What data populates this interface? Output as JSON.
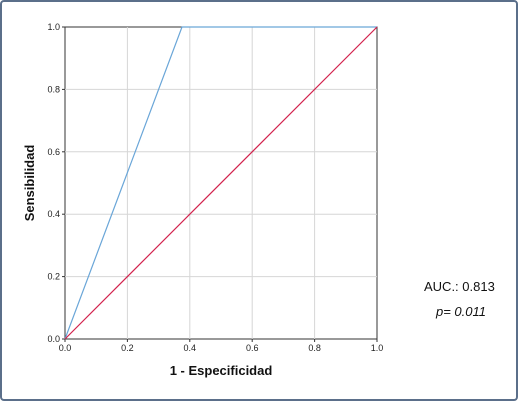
{
  "chart_data": {
    "type": "line",
    "title": "",
    "xlabel": "1 - Especificidad",
    "ylabel": "Sensibilidad",
    "xlim": [
      0,
      1
    ],
    "ylim": [
      0,
      1
    ],
    "x_ticks": [
      "0.0",
      "0.2",
      "0.4",
      "0.6",
      "0.8",
      "1.0"
    ],
    "y_ticks": [
      "0.0",
      "0.2",
      "0.4",
      "0.6",
      "0.8",
      "1.0"
    ],
    "grid": true,
    "series": [
      {
        "color": "#6aa6d8",
        "x": [
          0.0,
          0.375,
          1.0
        ],
        "y": [
          0.0,
          1.0,
          1.0
        ]
      },
      {
        "color": "#d2224d",
        "x": [
          0.0,
          1.0
        ],
        "y": [
          0.0,
          1.0
        ]
      }
    ]
  },
  "stats": {
    "auc_text": "AUC.: 0.813",
    "p_text": "p= 0.011"
  }
}
